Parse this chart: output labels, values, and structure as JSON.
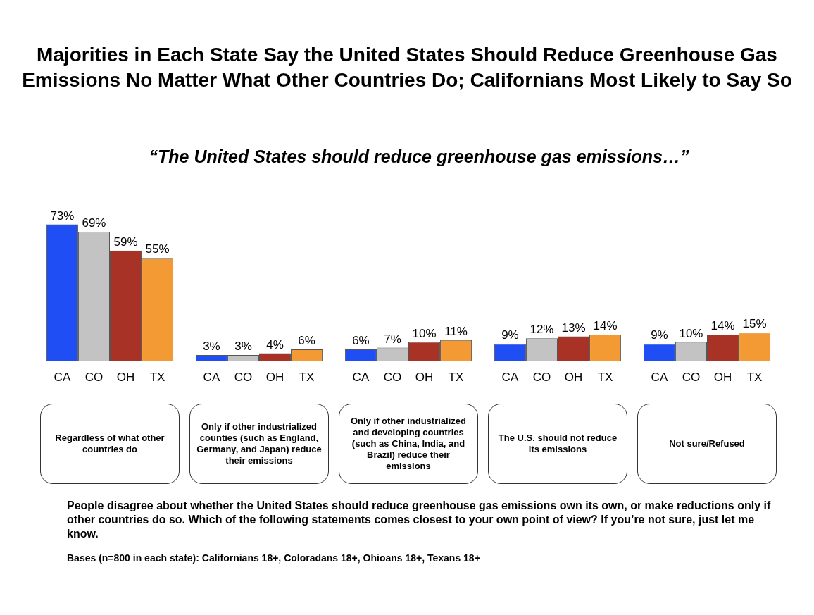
{
  "chart_data": {
    "type": "bar",
    "title": "Majorities in Each State Say the United States Should Reduce Greenhouse Gas Emissions No Matter What Other Countries Do; Californians Most Likely to Say So",
    "subtitle": "“The United States should reduce greenhouse gas emissions…”",
    "categories": [
      "Regardless of what other countries do",
      "Only if other industrialized counties (such as England, Germany, and Japan) reduce their emissions",
      "Only if other industrialized and developing countries (such as China, India, and Brazil) reduce their emissions",
      "The U.S. should not reduce its emissions",
      "Not sure/Refused"
    ],
    "series": [
      {
        "name": "CA",
        "color": "#1f4ef5",
        "values": [
          73,
          3,
          6,
          9,
          9
        ],
        "value_labels": [
          "73%",
          "3%",
          "6%",
          "9%",
          "9%"
        ]
      },
      {
        "name": "CO",
        "color": "#c3c3c3",
        "values": [
          69,
          3,
          7,
          12,
          10
        ],
        "value_labels": [
          "69%",
          "3%",
          "7%",
          "12%",
          "10%"
        ]
      },
      {
        "name": "OH",
        "color": "#a93226",
        "values": [
          59,
          4,
          10,
          13,
          14
        ],
        "value_labels": [
          "59%",
          "4%",
          "10%",
          "13%",
          "14%"
        ]
      },
      {
        "name": "TX",
        "color": "#f39a35",
        "values": [
          55,
          6,
          11,
          14,
          15
        ],
        "value_labels": [
          "55%",
          "6%",
          "11%",
          "14%",
          "15%"
        ]
      }
    ],
    "annotations": [
      "People disagree about whether the United States should reduce greenhouse gas emissions own its own, or make reductions only if other countries do so. Which of the following statements comes closest to your own point of view? If you’re not sure, just let me know.",
      "Bases (n=800 in each state): Californians 18+, Coloradans 18+, Ohioans 18+, Texans 18+"
    ]
  }
}
